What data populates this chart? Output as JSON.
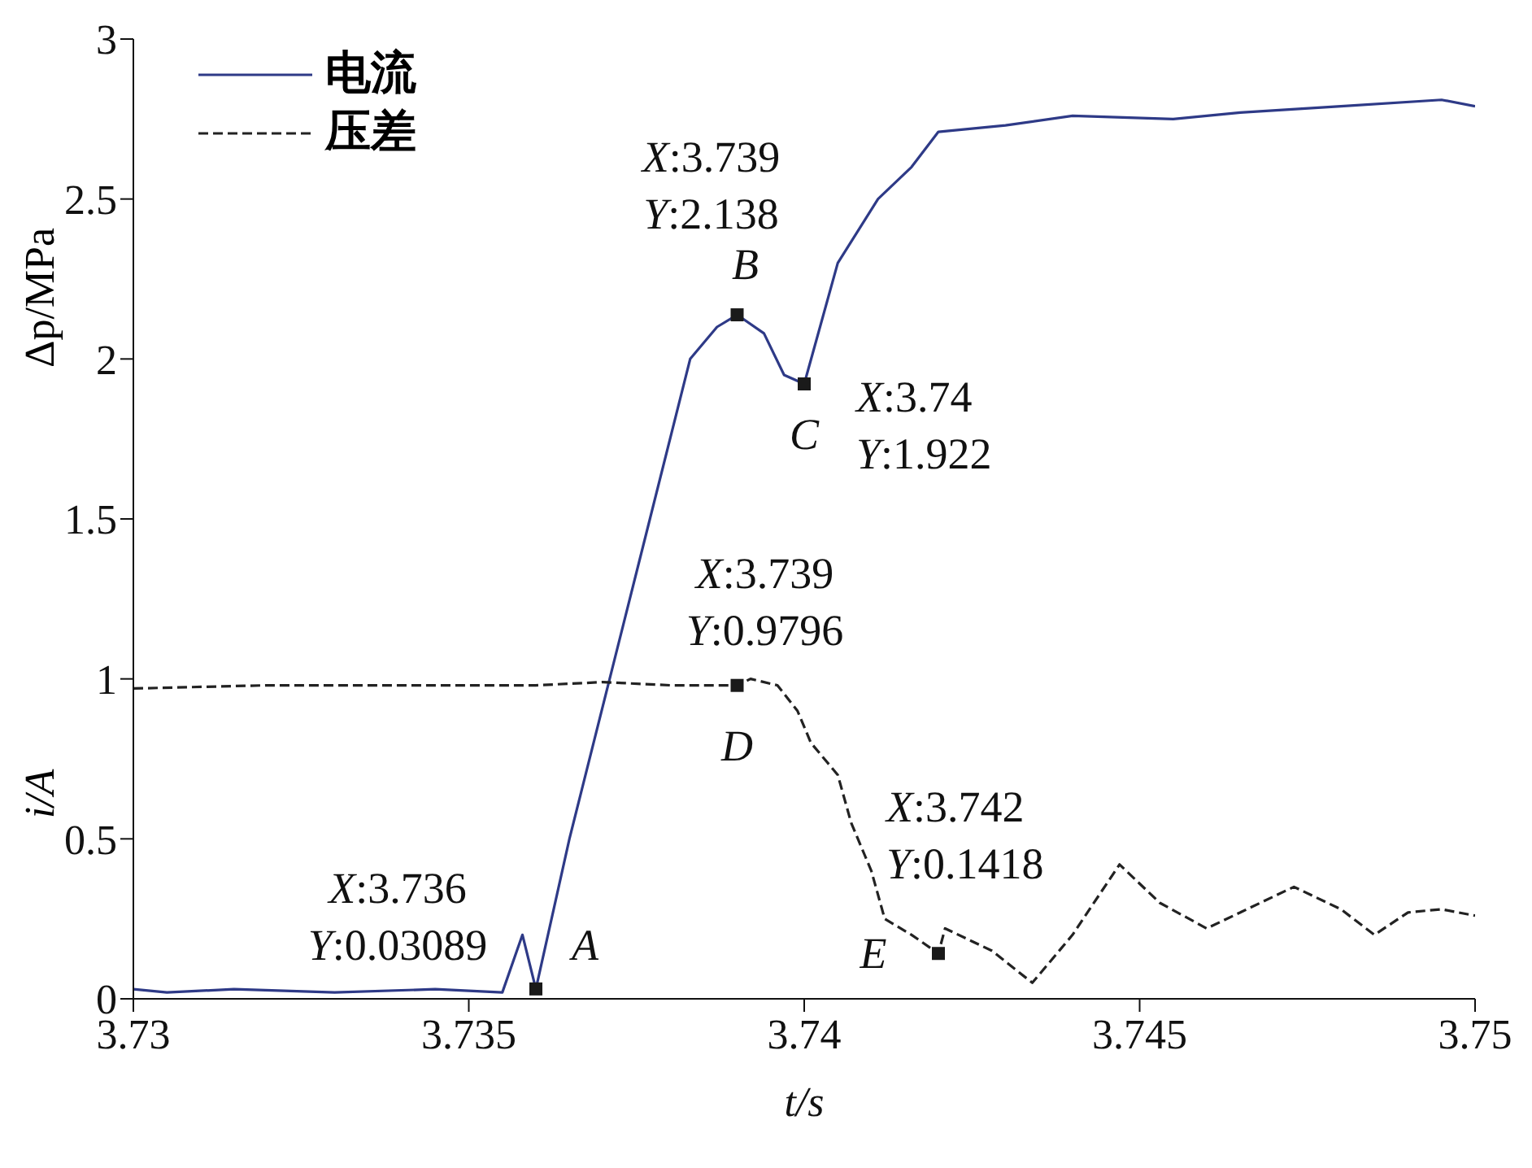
{
  "chart_data": {
    "type": "line",
    "xlabel": "t/s",
    "ylabel": "Δp/MPa",
    "xlim": [
      3.73,
      3.75
    ],
    "xticks": [
      3.73,
      3.735,
      3.74,
      3.745,
      3.75
    ],
    "ylim": [
      0,
      3
    ],
    "yticks": [
      0,
      0.5,
      1,
      1.5,
      2,
      2.5,
      3
    ],
    "legend": "top left",
    "grid": false,
    "series": [
      {
        "name": "电流",
        "color": "#2e3a87",
        "line_style": "solid",
        "marker": "none",
        "x": [
          3.73,
          3.7305,
          3.7315,
          3.733,
          3.7345,
          3.7355,
          3.7358,
          3.736,
          3.7365,
          3.7371,
          3.7377,
          3.7383,
          3.7387,
          3.739,
          3.7394,
          3.7397,
          3.74,
          3.7405,
          3.7411,
          3.7416,
          3.742,
          3.743,
          3.744,
          3.7455,
          3.7465,
          3.748,
          3.7495,
          3.75
        ],
        "values": [
          0.03,
          0.02,
          0.03,
          0.02,
          0.03,
          0.02,
          0.2,
          0.03089,
          0.5,
          1,
          1.5,
          2,
          2.1,
          2.138,
          2.08,
          1.95,
          1.922,
          2.3,
          2.5,
          2.6,
          2.71,
          2.73,
          2.76,
          2.75,
          2.77,
          2.79,
          2.81,
          2.79
        ]
      },
      {
        "name": "压差",
        "color": "#222222",
        "line_style": "dashed",
        "marker": "none",
        "x": [
          3.73,
          3.732,
          3.734,
          3.736,
          3.737,
          3.738,
          3.739,
          3.7392,
          3.7396,
          3.7399,
          3.7401,
          3.7405,
          3.7407,
          3.7409,
          3.741,
          3.7412,
          3.7416,
          3.742,
          3.7421,
          3.7425,
          3.7428,
          3.7434,
          3.744,
          3.7447,
          3.7453,
          3.746,
          3.7473,
          3.748,
          3.7485,
          3.749,
          3.7495,
          3.75
        ],
        "values": [
          0.97,
          0.98,
          0.98,
          0.98,
          0.99,
          0.98,
          0.9796,
          1,
          0.98,
          0.9,
          0.8,
          0.7,
          0.55,
          0.45,
          0.4,
          0.25,
          0.2,
          0.1418,
          0.22,
          0.18,
          0.15,
          0.05,
          0.2,
          0.42,
          0.3,
          0.22,
          0.35,
          0.28,
          0.2,
          0.27,
          0.28,
          0.26
        ]
      },
      {
        "type": "scatter",
        "color": "#1a1a1a",
        "marker": "square",
        "x": [
          3.736,
          3.739,
          3.74,
          3.739,
          3.742
        ],
        "values": [
          0.03089,
          2.138,
          1.922,
          0.9796,
          0.1418
        ]
      }
    ],
    "annotations": [
      {
        "text": "X:3.736\nY:0.03089",
        "x": 3.736,
        "y": 0.03089
      },
      {
        "text": "A",
        "x": 3.736,
        "y": 0.03089
      },
      {
        "text": "X:3.739\nY:2.138",
        "x": 3.739,
        "y": 2.138
      },
      {
        "text": "B",
        "x": 3.739,
        "y": 2.138
      },
      {
        "text": "X:3.74\nY:1.922",
        "x": 3.74,
        "y": 1.922
      },
      {
        "text": "C",
        "x": 3.74,
        "y": 1.922
      },
      {
        "text": "X:3.739\nY:0.9796",
        "x": 3.739,
        "y": 0.9796
      },
      {
        "text": "D",
        "x": 3.739,
        "y": 0.9796
      },
      {
        "text": "X:3.742\nY:0.1418",
        "x": 3.742,
        "y": 0.1418
      },
      {
        "text": "E",
        "x": 3.742,
        "y": 0.1418
      },
      "i/A"
    ]
  }
}
